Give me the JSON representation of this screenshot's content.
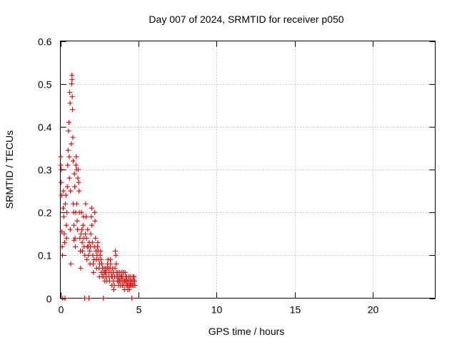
{
  "chart_data": {
    "type": "scatter",
    "title": "Day 007 of 2024, SRMTID for receiver p050",
    "xlabel": "GPS time / hours",
    "ylabel": "SRMTID / TECUs",
    "xlim": [
      0,
      24
    ],
    "ylim": [
      0,
      0.6
    ],
    "xticks": [
      0,
      5,
      10,
      15,
      20
    ],
    "xtick_labels": [
      "0",
      "5",
      "10",
      "15",
      "20"
    ],
    "yticks": [
      0,
      0.1,
      0.2,
      0.3,
      0.4,
      0.5,
      0.6
    ],
    "ytick_labels": [
      "0",
      "0.1",
      "0.2",
      "0.3",
      "0.4",
      "0.5",
      "0.6"
    ],
    "grid": true,
    "marker": "plus",
    "color": "#dd0000",
    "series": [
      {
        "name": "SRMTID",
        "points": [
          [
            0.02,
            0.33
          ],
          [
            0.03,
            0.31
          ],
          [
            0.05,
            0.27
          ],
          [
            0.06,
            0.3
          ],
          [
            0.08,
            0.24
          ],
          [
            0.1,
            0.155
          ],
          [
            0.12,
            0.12
          ],
          [
            0.14,
            0.1
          ],
          [
            0.15,
            0.0
          ],
          [
            0.18,
            0.21
          ],
          [
            0.2,
            0.25
          ],
          [
            0.22,
            0.19
          ],
          [
            0.25,
            0.15
          ],
          [
            0.27,
            0.13
          ],
          [
            0.3,
            0.0
          ],
          [
            0.32,
            0.22
          ],
          [
            0.35,
            0.24
          ],
          [
            0.38,
            0.17
          ],
          [
            0.4,
            0.14
          ],
          [
            0.42,
            0.2
          ],
          [
            0.45,
            0.26
          ],
          [
            0.47,
            0.31
          ],
          [
            0.5,
            0.345
          ],
          [
            0.52,
            0.39
          ],
          [
            0.55,
            0.41
          ],
          [
            0.57,
            0.33
          ],
          [
            0.58,
            0.28
          ],
          [
            0.6,
            0.48
          ],
          [
            0.62,
            0.455
          ],
          [
            0.63,
            0.16
          ],
          [
            0.65,
            0.25
          ],
          [
            0.67,
            0.08
          ],
          [
            0.7,
            0.36
          ],
          [
            0.72,
            0.5
          ],
          [
            0.74,
            0.52
          ],
          [
            0.75,
            0.51
          ],
          [
            0.76,
            0.47
          ],
          [
            0.78,
            0.44
          ],
          [
            0.8,
            0.375
          ],
          [
            0.82,
            0.32
          ],
          [
            0.83,
            0.22
          ],
          [
            0.85,
            0.2
          ],
          [
            0.87,
            0.17
          ],
          [
            0.88,
            0.135
          ],
          [
            0.9,
            0.29
          ],
          [
            0.92,
            0.26
          ],
          [
            0.94,
            0.14
          ],
          [
            0.96,
            0.12
          ],
          [
            0.98,
            0.2
          ],
          [
            1.0,
            0.31
          ],
          [
            1.02,
            0.33
          ],
          [
            1.04,
            0.3
          ],
          [
            1.05,
            0.22
          ],
          [
            1.07,
            0.18
          ],
          [
            1.1,
            0.16
          ],
          [
            1.12,
            0.28
          ],
          [
            1.15,
            0.3
          ],
          [
            1.17,
            0.27
          ],
          [
            1.2,
            0.25
          ],
          [
            1.22,
            0.2
          ],
          [
            1.25,
            0.14
          ],
          [
            1.28,
            0.11
          ],
          [
            1.3,
            0.07
          ],
          [
            1.32,
            0.15
          ],
          [
            1.35,
            0.2
          ],
          [
            1.38,
            0.16
          ],
          [
            1.4,
            0.13
          ],
          [
            1.42,
            0.11
          ],
          [
            1.45,
            0.17
          ],
          [
            1.48,
            0.19
          ],
          [
            1.5,
            0.14
          ],
          [
            1.52,
            0.12
          ],
          [
            1.55,
            0.0
          ],
          [
            1.57,
            0.1
          ],
          [
            1.6,
            0.15
          ],
          [
            1.62,
            0.22
          ],
          [
            1.65,
            0.19
          ],
          [
            1.68,
            0.14
          ],
          [
            1.7,
            0.09
          ],
          [
            1.72,
            0.12
          ],
          [
            1.75,
            0.16
          ],
          [
            1.78,
            0.12
          ],
          [
            1.8,
            0.1
          ],
          [
            1.83,
            0.0
          ],
          [
            1.85,
            0.13
          ],
          [
            1.88,
            0.11
          ],
          [
            1.9,
            0.08
          ],
          [
            1.92,
            0.12
          ],
          [
            1.95,
            0.15
          ],
          [
            1.98,
            0.19
          ],
          [
            2.0,
            0.21
          ],
          [
            2.02,
            0.17
          ],
          [
            2.05,
            0.13
          ],
          [
            2.08,
            0.1
          ],
          [
            2.1,
            0.08
          ],
          [
            2.12,
            0.06
          ],
          [
            2.15,
            0.09
          ],
          [
            2.18,
            0.12
          ],
          [
            2.2,
            0.2
          ],
          [
            2.22,
            0.18
          ],
          [
            2.25,
            0.14
          ],
          [
            2.28,
            0.11
          ],
          [
            2.3,
            0.09
          ],
          [
            2.32,
            0.07
          ],
          [
            2.35,
            0.1
          ],
          [
            2.38,
            0.12
          ],
          [
            2.4,
            0.13
          ],
          [
            2.42,
            0.11
          ],
          [
            2.45,
            0.09
          ],
          [
            2.48,
            0.07
          ],
          [
            2.5,
            0.05
          ],
          [
            2.52,
            0.08
          ],
          [
            2.55,
            0.1
          ],
          [
            2.58,
            0.11
          ],
          [
            2.6,
            0.09
          ],
          [
            2.62,
            0.06
          ],
          [
            2.65,
            0.08
          ],
          [
            2.68,
            0.05
          ],
          [
            2.7,
            0.07
          ],
          [
            2.72,
            0.06
          ],
          [
            2.75,
            0.0
          ],
          [
            2.78,
            0.05
          ],
          [
            2.8,
            0.07
          ],
          [
            2.82,
            0.06
          ],
          [
            2.85,
            0.04
          ],
          [
            2.88,
            0.06
          ],
          [
            2.9,
            0.07
          ],
          [
            2.92,
            0.05
          ],
          [
            2.95,
            0.06
          ],
          [
            2.98,
            0.04
          ],
          [
            3.0,
            0.07
          ],
          [
            3.02,
            0.08
          ],
          [
            3.05,
            0.09
          ],
          [
            3.08,
            0.07
          ],
          [
            3.1,
            0.06
          ],
          [
            3.12,
            0.05
          ],
          [
            3.15,
            0.04
          ],
          [
            3.18,
            0.07
          ],
          [
            3.2,
            0.09
          ],
          [
            3.22,
            0.08
          ],
          [
            3.25,
            0.06
          ],
          [
            3.28,
            0.05
          ],
          [
            3.3,
            0.03
          ],
          [
            3.32,
            0.05
          ],
          [
            3.35,
            0.07
          ],
          [
            3.38,
            0.06
          ],
          [
            3.4,
            0.04
          ],
          [
            3.42,
            0.02
          ],
          [
            3.45,
            0.03
          ],
          [
            3.48,
            0.05
          ],
          [
            3.5,
            0.07
          ],
          [
            3.52,
            0.11
          ],
          [
            3.55,
            0.1
          ],
          [
            3.58,
            0.08
          ],
          [
            3.6,
            0.06
          ],
          [
            3.62,
            0.05
          ],
          [
            3.65,
            0.04
          ],
          [
            3.68,
            0.06
          ],
          [
            3.7,
            0.05
          ],
          [
            3.72,
            0.03
          ],
          [
            3.75,
            0.04
          ],
          [
            3.78,
            0.06
          ],
          [
            3.8,
            0.05
          ],
          [
            3.82,
            0.04
          ],
          [
            3.85,
            0.03
          ],
          [
            3.88,
            0.05
          ],
          [
            3.9,
            0.06
          ],
          [
            3.92,
            0.05
          ],
          [
            3.95,
            0.04
          ],
          [
            3.98,
            0.03
          ],
          [
            4.0,
            0.05
          ],
          [
            4.02,
            0.06
          ],
          [
            4.05,
            0.04
          ],
          [
            4.08,
            0.03
          ],
          [
            4.1,
            0.02
          ],
          [
            4.12,
            0.04
          ],
          [
            4.15,
            0.06
          ],
          [
            4.18,
            0.05
          ],
          [
            4.2,
            0.04
          ],
          [
            4.22,
            0.03
          ],
          [
            4.25,
            0.05
          ],
          [
            4.28,
            0.04
          ],
          [
            4.3,
            0.03
          ],
          [
            4.32,
            0.02
          ],
          [
            4.35,
            0.04
          ],
          [
            4.38,
            0.05
          ],
          [
            4.4,
            0.03
          ],
          [
            4.42,
            0.02
          ],
          [
            4.45,
            0.04
          ],
          [
            4.48,
            0.03
          ],
          [
            4.5,
            0.05
          ],
          [
            4.52,
            0.04
          ],
          [
            4.55,
            0.03
          ],
          [
            4.58,
            0.0
          ],
          [
            4.6,
            0.04
          ],
          [
            4.62,
            0.03
          ],
          [
            4.65,
            0.05
          ],
          [
            4.68,
            0.04
          ],
          [
            4.7,
            0.03
          ],
          [
            4.72,
            0.05
          ],
          [
            4.75,
            0.04
          ],
          [
            4.78,
            0.03
          ]
        ]
      }
    ]
  }
}
